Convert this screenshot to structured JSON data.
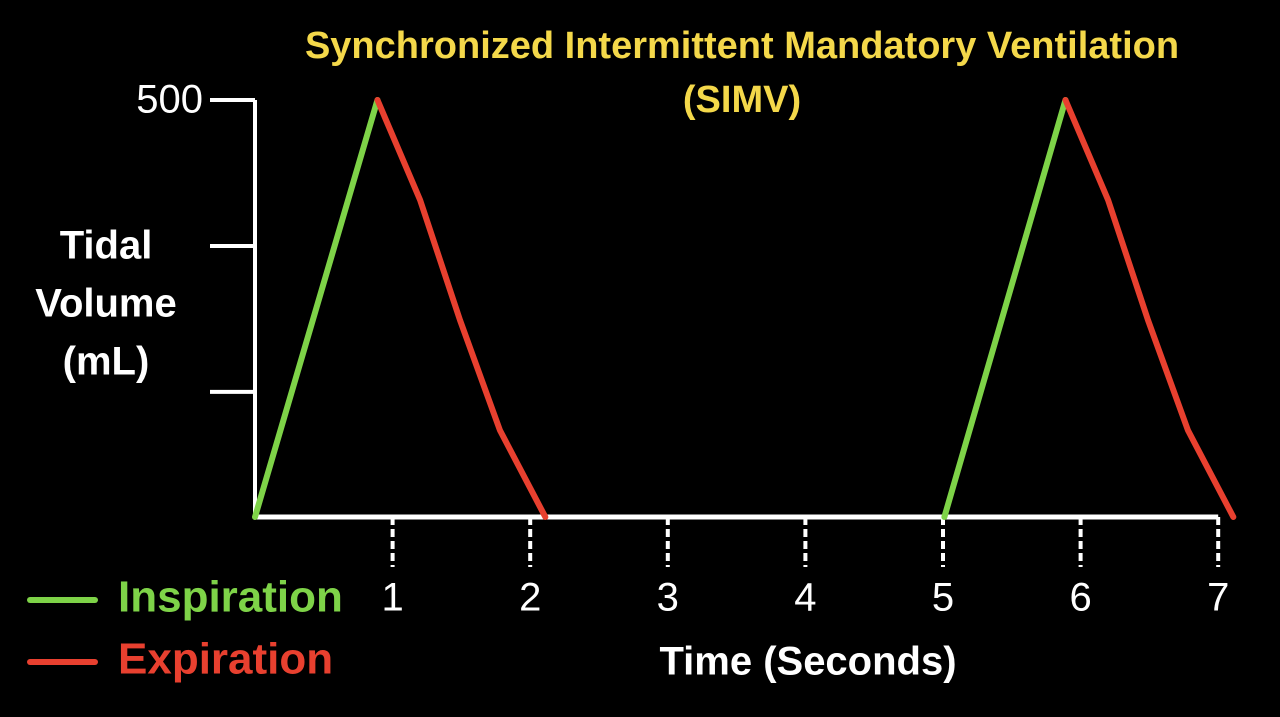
{
  "chart_data": {
    "type": "line",
    "title": [
      "Synchronized Intermittent Mandatory Ventilation",
      "(SIMV)"
    ],
    "ylabel": [
      "Tidal",
      "Volume",
      "(mL)"
    ],
    "xlabel": "Time (Seconds)",
    "x": [
      0,
      0.89,
      1.2,
      1.49,
      1.78,
      2.11,
      5.01,
      5.89,
      6.2,
      6.49,
      6.78,
      7.11
    ],
    "series": [
      {
        "name": "Inspiration",
        "color": "#7ed348",
        "values": [
          0,
          500,
          null,
          null,
          null,
          null,
          0,
          500,
          null,
          null,
          null,
          null
        ]
      },
      {
        "name": "Expiration",
        "color": "#e8402f",
        "values": [
          null,
          500,
          380,
          236,
          104,
          0,
          null,
          500,
          380,
          236,
          104,
          0
        ]
      }
    ],
    "xlim": [
      0,
      7.15
    ],
    "xticks": [
      1,
      2,
      3,
      4,
      5,
      6,
      7
    ],
    "ylim": [
      0,
      500
    ],
    "yticks": [
      500
    ],
    "yminor_ticks": [
      150,
      325
    ],
    "legend": "bottom-left",
    "title_color": "#f4d84a"
  }
}
